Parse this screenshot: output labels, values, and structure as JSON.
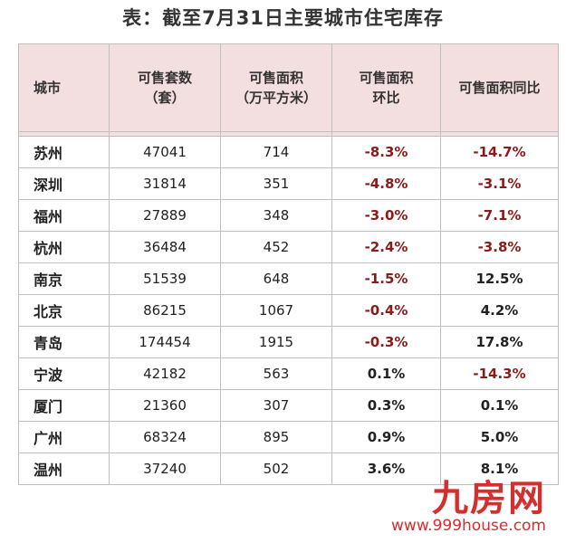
{
  "title": "表：截至7月31日主要城市住宅库存",
  "headers": [
    {
      "line1": "城市",
      "line2": ""
    },
    {
      "line1": "可售套数",
      "line2": "（套）"
    },
    {
      "line1": "可售面积",
      "line2": "（万平方米）"
    },
    {
      "line1": "可售面积",
      "line2": "环比"
    },
    {
      "line1": "可售面积同比",
      "line2": ""
    }
  ],
  "rows": [
    {
      "city": "苏州",
      "units": "47041",
      "area": "714",
      "mom": "-8.3%",
      "yoy": "-14.7%"
    },
    {
      "city": "深圳",
      "units": "31814",
      "area": "351",
      "mom": "-4.8%",
      "yoy": "-3.1%"
    },
    {
      "city": "福州",
      "units": "27889",
      "area": "348",
      "mom": "-3.0%",
      "yoy": "-7.1%"
    },
    {
      "city": "杭州",
      "units": "36484",
      "area": "452",
      "mom": "-2.4%",
      "yoy": "-3.8%"
    },
    {
      "city": "南京",
      "units": "51539",
      "area": "648",
      "mom": "-1.5%",
      "yoy": "12.5%"
    },
    {
      "city": "北京",
      "units": "86215",
      "area": "1067",
      "mom": "-0.4%",
      "yoy": "4.2%"
    },
    {
      "city": "青岛",
      "units": "174454",
      "area": "1915",
      "mom": "-0.3%",
      "yoy": "17.8%"
    },
    {
      "city": "宁波",
      "units": "42182",
      "area": "563",
      "mom": "0.1%",
      "yoy": "-14.3%"
    },
    {
      "city": "厦门",
      "units": "21360",
      "area": "307",
      "mom": "0.3%",
      "yoy": "0.1%"
    },
    {
      "city": "广州",
      "units": "68324",
      "area": "895",
      "mom": "0.9%",
      "yoy": "5.0%"
    },
    {
      "city": "温州",
      "units": "37240",
      "area": "502",
      "mom": "3.6%",
      "yoy": "8.1%"
    }
  ],
  "colors": {
    "negative": "#8b1a1a",
    "header_bg": "#f4dfe0",
    "logo": "#d32f2f"
  },
  "watermark": {
    "brand": "九房网",
    "url": "www.999house.com"
  }
}
